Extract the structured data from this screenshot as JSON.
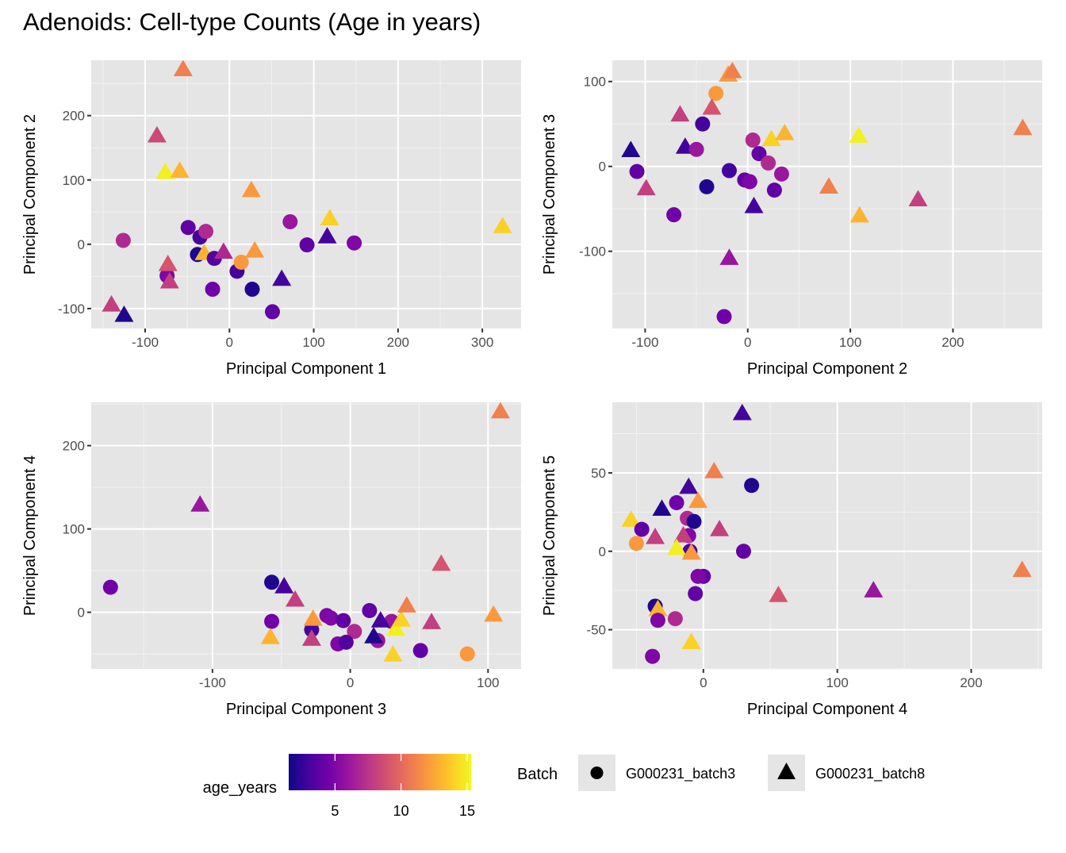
{
  "title": "Adenoids: Cell-type Counts (Age in years)",
  "chart_data": [
    {
      "type": "scatter",
      "panel": "top-left",
      "xlabel": "Principal Component 1",
      "ylabel": "Principal Component 2",
      "xlim": [
        -164,
        346
      ],
      "ylim": [
        -131,
        286
      ],
      "xticks": [
        -100,
        0,
        100,
        200,
        300
      ],
      "yticks": [
        -100,
        0,
        100,
        200
      ],
      "grid": true,
      "points": [
        {
          "x": -55,
          "y": 272,
          "batch": "G000231_batch8",
          "age": 11
        },
        {
          "x": -86,
          "y": 169,
          "batch": "G000231_batch8",
          "age": 8.5
        },
        {
          "x": -76,
          "y": 112,
          "batch": "G000231_batch8",
          "age": 15
        },
        {
          "x": -59,
          "y": 114,
          "batch": "G000231_batch8",
          "age": 13
        },
        {
          "x": 26,
          "y": 84,
          "batch": "G000231_batch8",
          "age": 12
        },
        {
          "x": -126,
          "y": 6,
          "batch": "G000231_batch3",
          "age": 7
        },
        {
          "x": -49,
          "y": 26,
          "batch": "G000231_batch3",
          "age": 4
        },
        {
          "x": -35,
          "y": 11,
          "batch": "G000231_batch3",
          "age": 3
        },
        {
          "x": -28,
          "y": 20,
          "batch": "G000231_batch3",
          "age": 7
        },
        {
          "x": -38,
          "y": -16,
          "batch": "G000231_batch3",
          "age": 2
        },
        {
          "x": -30,
          "y": -14,
          "batch": "G000231_batch8",
          "age": 13
        },
        {
          "x": -18,
          "y": -22,
          "batch": "G000231_batch3",
          "age": 3.5
        },
        {
          "x": -7,
          "y": -12,
          "batch": "G000231_batch8",
          "age": 7
        },
        {
          "x": 30,
          "y": -10,
          "batch": "G000231_batch8",
          "age": 12
        },
        {
          "x": 9,
          "y": -42,
          "batch": "G000231_batch3",
          "age": 3
        },
        {
          "x": 14,
          "y": -28,
          "batch": "G000231_batch3",
          "age": 12
        },
        {
          "x": -74,
          "y": -49,
          "batch": "G000231_batch3",
          "age": 5
        },
        {
          "x": -73,
          "y": -31,
          "batch": "G000231_batch8",
          "age": 9
        },
        {
          "x": -71,
          "y": -58,
          "batch": "G000231_batch8",
          "age": 8
        },
        {
          "x": -20,
          "y": -70,
          "batch": "G000231_batch3",
          "age": 4.5
        },
        {
          "x": 27,
          "y": -70,
          "batch": "G000231_batch3",
          "age": 2
        },
        {
          "x": 62,
          "y": -54,
          "batch": "G000231_batch8",
          "age": 3
        },
        {
          "x": 51,
          "y": -105,
          "batch": "G000231_batch3",
          "age": 4
        },
        {
          "x": -140,
          "y": -94,
          "batch": "G000231_batch8",
          "age": 8
        },
        {
          "x": -125,
          "y": -110,
          "batch": "G000231_batch8",
          "age": 2
        },
        {
          "x": 72,
          "y": 35,
          "batch": "G000231_batch3",
          "age": 6
        },
        {
          "x": 92,
          "y": -1,
          "batch": "G000231_batch3",
          "age": 4
        },
        {
          "x": 119,
          "y": 40,
          "batch": "G000231_batch8",
          "age": 14
        },
        {
          "x": 116,
          "y": 12,
          "batch": "G000231_batch8",
          "age": 3
        },
        {
          "x": 148,
          "y": 2,
          "batch": "G000231_batch3",
          "age": 5
        },
        {
          "x": 324,
          "y": 28,
          "batch": "G000231_batch8",
          "age": 14
        }
      ]
    },
    {
      "type": "scatter",
      "panel": "top-right",
      "xlabel": "Principal Component 2",
      "ylabel": "Principal Component 3",
      "xlim": [
        -132,
        287
      ],
      "ylim": [
        -191,
        125
      ],
      "xticks": [
        -100,
        0,
        100,
        200
      ],
      "yticks": [
        -100,
        0,
        100
      ],
      "grid": true,
      "points": [
        {
          "x": -19,
          "y": 108,
          "batch": "G000231_batch8",
          "age": 12
        },
        {
          "x": -15,
          "y": 112,
          "batch": "G000231_batch8",
          "age": 11
        },
        {
          "x": -31,
          "y": 86,
          "batch": "G000231_batch3",
          "age": 12
        },
        {
          "x": -35,
          "y": 69,
          "batch": "G000231_batch8",
          "age": 9
        },
        {
          "x": -66,
          "y": 61,
          "batch": "G000231_batch8",
          "age": 8
        },
        {
          "x": -44,
          "y": 50,
          "batch": "G000231_batch3",
          "age": 3
        },
        {
          "x": -114,
          "y": 19,
          "batch": "G000231_batch8",
          "age": 2
        },
        {
          "x": -61,
          "y": 23,
          "batch": "G000231_batch8",
          "age": 3
        },
        {
          "x": -50,
          "y": 20,
          "batch": "G000231_batch3",
          "age": 6
        },
        {
          "x": -108,
          "y": -6,
          "batch": "G000231_batch3",
          "age": 4
        },
        {
          "x": -99,
          "y": -26,
          "batch": "G000231_batch8",
          "age": 8
        },
        {
          "x": -72,
          "y": -57,
          "batch": "G000231_batch3",
          "age": 4.5
        },
        {
          "x": -40,
          "y": -24,
          "batch": "G000231_batch3",
          "age": 2
        },
        {
          "x": -18,
          "y": -5,
          "batch": "G000231_batch3",
          "age": 3
        },
        {
          "x": -3,
          "y": -16,
          "batch": "G000231_batch3",
          "age": 4
        },
        {
          "x": 2,
          "y": -18,
          "batch": "G000231_batch3",
          "age": 5
        },
        {
          "x": 6,
          "y": -47,
          "batch": "G000231_batch8",
          "age": 3
        },
        {
          "x": 5,
          "y": 31,
          "batch": "G000231_batch3",
          "age": 7
        },
        {
          "x": 11,
          "y": 15,
          "batch": "G000231_batch3",
          "age": 4
        },
        {
          "x": 20,
          "y": 4,
          "batch": "G000231_batch3",
          "age": 7
        },
        {
          "x": 33,
          "y": -9,
          "batch": "G000231_batch3",
          "age": 6
        },
        {
          "x": 26,
          "y": -28,
          "batch": "G000231_batch3",
          "age": 4
        },
        {
          "x": -23,
          "y": -177,
          "batch": "G000231_batch3",
          "age": 4.5
        },
        {
          "x": -18,
          "y": -108,
          "batch": "G000231_batch8",
          "age": 6
        },
        {
          "x": 23,
          "y": 32,
          "batch": "G000231_batch8",
          "age": 14
        },
        {
          "x": 36,
          "y": 39,
          "batch": "G000231_batch8",
          "age": 13
        },
        {
          "x": 108,
          "y": 36,
          "batch": "G000231_batch8",
          "age": 15
        },
        {
          "x": 79,
          "y": -24,
          "batch": "G000231_batch8",
          "age": 11
        },
        {
          "x": 109,
          "y": -58,
          "batch": "G000231_batch8",
          "age": 13
        },
        {
          "x": 166,
          "y": -39,
          "batch": "G000231_batch8",
          "age": 8
        },
        {
          "x": 268,
          "y": 45,
          "batch": "G000231_batch8",
          "age": 11
        }
      ]
    },
    {
      "type": "scatter",
      "panel": "bottom-left",
      "xlabel": "Principal Component 3",
      "ylabel": "Principal Component 4",
      "xlim": [
        -188,
        124
      ],
      "ylim": [
        -68,
        252
      ],
      "xticks": [
        -100,
        0,
        100
      ],
      "yticks": [
        0,
        100,
        200
      ],
      "grid": true,
      "points": [
        {
          "x": 109,
          "y": 241,
          "batch": "G000231_batch8",
          "age": 11
        },
        {
          "x": -109,
          "y": 129,
          "batch": "G000231_batch8",
          "age": 6
        },
        {
          "x": -174,
          "y": 30,
          "batch": "G000231_batch3",
          "age": 4.5
        },
        {
          "x": -57,
          "y": 36,
          "batch": "G000231_batch3",
          "age": 2
        },
        {
          "x": -48,
          "y": 31,
          "batch": "G000231_batch8",
          "age": 3
        },
        {
          "x": -40,
          "y": 15,
          "batch": "G000231_batch8",
          "age": 8
        },
        {
          "x": -57,
          "y": -11,
          "batch": "G000231_batch3",
          "age": 4.5
        },
        {
          "x": -58,
          "y": -30,
          "batch": "G000231_batch8",
          "age": 13
        },
        {
          "x": -28,
          "y": -21,
          "batch": "G000231_batch3",
          "age": 3
        },
        {
          "x": -27,
          "y": -8,
          "batch": "G000231_batch8",
          "age": 12
        },
        {
          "x": -28,
          "y": -32,
          "batch": "G000231_batch8",
          "age": 8
        },
        {
          "x": -17,
          "y": -4,
          "batch": "G000231_batch3",
          "age": 5
        },
        {
          "x": -14,
          "y": -7,
          "batch": "G000231_batch3",
          "age": 5
        },
        {
          "x": -5,
          "y": -10,
          "batch": "G000231_batch3",
          "age": 4
        },
        {
          "x": 3,
          "y": -23,
          "batch": "G000231_batch3",
          "age": 7
        },
        {
          "x": -9,
          "y": -38,
          "batch": "G000231_batch3",
          "age": 5
        },
        {
          "x": -3,
          "y": -36,
          "batch": "G000231_batch3",
          "age": 3.5
        },
        {
          "x": 14,
          "y": 2,
          "batch": "G000231_batch3",
          "age": 4
        },
        {
          "x": 30,
          "y": -11,
          "batch": "G000231_batch3",
          "age": 6
        },
        {
          "x": 22,
          "y": -10,
          "batch": "G000231_batch8",
          "age": 3
        },
        {
          "x": 20,
          "y": -34,
          "batch": "G000231_batch3",
          "age": 6
        },
        {
          "x": 17,
          "y": -29,
          "batch": "G000231_batch8",
          "age": 2
        },
        {
          "x": 33,
          "y": -20,
          "batch": "G000231_batch8",
          "age": 15
        },
        {
          "x": 37,
          "y": -9,
          "batch": "G000231_batch8",
          "age": 14
        },
        {
          "x": 41,
          "y": 8,
          "batch": "G000231_batch8",
          "age": 11
        },
        {
          "x": 31,
          "y": -51,
          "batch": "G000231_batch8",
          "age": 14
        },
        {
          "x": 51,
          "y": -46,
          "batch": "G000231_batch3",
          "age": 4
        },
        {
          "x": 59,
          "y": -12,
          "batch": "G000231_batch8",
          "age": 8
        },
        {
          "x": 66,
          "y": 58,
          "batch": "G000231_batch8",
          "age": 9
        },
        {
          "x": 104,
          "y": -3,
          "batch": "G000231_batch8",
          "age": 12
        },
        {
          "x": 85,
          "y": -50,
          "batch": "G000231_batch3",
          "age": 12
        }
      ]
    },
    {
      "type": "scatter",
      "panel": "bottom-right",
      "xlabel": "Principal Component 4",
      "ylabel": "Principal Component 5",
      "xlim": [
        -68,
        253
      ],
      "ylim": [
        -75,
        95
      ],
      "xticks": [
        0,
        100,
        200
      ],
      "yticks": [
        -50,
        0,
        50
      ],
      "grid": true,
      "points": [
        {
          "x": 29,
          "y": 88,
          "batch": "G000231_batch8",
          "age": 3
        },
        {
          "x": 8,
          "y": 51,
          "batch": "G000231_batch8",
          "age": 11
        },
        {
          "x": 36,
          "y": 42,
          "batch": "G000231_batch3",
          "age": 2
        },
        {
          "x": -11,
          "y": 41,
          "batch": "G000231_batch8",
          "age": 3
        },
        {
          "x": -20,
          "y": 31,
          "batch": "G000231_batch3",
          "age": 4.5
        },
        {
          "x": -4,
          "y": 32,
          "batch": "G000231_batch8",
          "age": 12
        },
        {
          "x": -31,
          "y": 27,
          "batch": "G000231_batch8",
          "age": 2
        },
        {
          "x": -54,
          "y": 20,
          "batch": "G000231_batch8",
          "age": 14
        },
        {
          "x": -12,
          "y": 21,
          "batch": "G000231_batch3",
          "age": 7
        },
        {
          "x": -7,
          "y": 19,
          "batch": "G000231_batch3",
          "age": 2
        },
        {
          "x": -46,
          "y": 14,
          "batch": "G000231_batch3",
          "age": 4
        },
        {
          "x": -36,
          "y": 9,
          "batch": "G000231_batch8",
          "age": 8
        },
        {
          "x": -11,
          "y": 10,
          "batch": "G000231_batch3",
          "age": 5
        },
        {
          "x": -15,
          "y": 10,
          "batch": "G000231_batch8",
          "age": 8
        },
        {
          "x": 12,
          "y": 14,
          "batch": "G000231_batch8",
          "age": 8
        },
        {
          "x": -50,
          "y": 5,
          "batch": "G000231_batch3",
          "age": 12
        },
        {
          "x": -10,
          "y": 0,
          "batch": "G000231_batch3",
          "age": 3
        },
        {
          "x": -20,
          "y": 2,
          "batch": "G000231_batch8",
          "age": 15
        },
        {
          "x": -9,
          "y": -1,
          "batch": "G000231_batch8",
          "age": 12
        },
        {
          "x": 30,
          "y": 0,
          "batch": "G000231_batch3",
          "age": 4
        },
        {
          "x": 0,
          "y": -16,
          "batch": "G000231_batch3",
          "age": 4
        },
        {
          "x": -4,
          "y": -16,
          "batch": "G000231_batch3",
          "age": 5
        },
        {
          "x": -6,
          "y": -27,
          "batch": "G000231_batch3",
          "age": 4
        },
        {
          "x": 56,
          "y": -28,
          "batch": "G000231_batch8",
          "age": 9
        },
        {
          "x": 127,
          "y": -25,
          "batch": "G000231_batch8",
          "age": 6
        },
        {
          "x": 238,
          "y": -12,
          "batch": "G000231_batch8",
          "age": 11
        },
        {
          "x": -36,
          "y": -35,
          "batch": "G000231_batch3",
          "age": 2
        },
        {
          "x": -34,
          "y": -37,
          "batch": "G000231_batch8",
          "age": 13
        },
        {
          "x": -34,
          "y": -44,
          "batch": "G000231_batch3",
          "age": 5
        },
        {
          "x": -21,
          "y": -43,
          "batch": "G000231_batch3",
          "age": 7
        },
        {
          "x": -9,
          "y": -58,
          "batch": "G000231_batch8",
          "age": 14
        },
        {
          "x": -38,
          "y": -67,
          "batch": "G000231_batch3",
          "age": 5
        }
      ]
    }
  ],
  "legend": {
    "color": {
      "title": "age_years",
      "min": 1.5,
      "max": 15.3,
      "ticks": [
        5,
        10,
        15
      ],
      "tick_labels": [
        "5",
        "10",
        "15"
      ],
      "palette": [
        "#0d0887",
        "#46039f",
        "#7201a8",
        "#9c179e",
        "#bd3786",
        "#d8576b",
        "#ed7953",
        "#fb9f3a",
        "#fdca26",
        "#f0f921"
      ]
    },
    "shape": {
      "title": "Batch",
      "items": [
        {
          "label": "G000231_batch3",
          "shape": "circle"
        },
        {
          "label": "G000231_batch8",
          "shape": "triangle"
        }
      ]
    }
  },
  "colors": {
    "panel_background": "#e5e5e5",
    "grid_major": "#ffffff",
    "tick_text": "#4d4d4d",
    "legend_key_background": "#e5e5e5"
  }
}
